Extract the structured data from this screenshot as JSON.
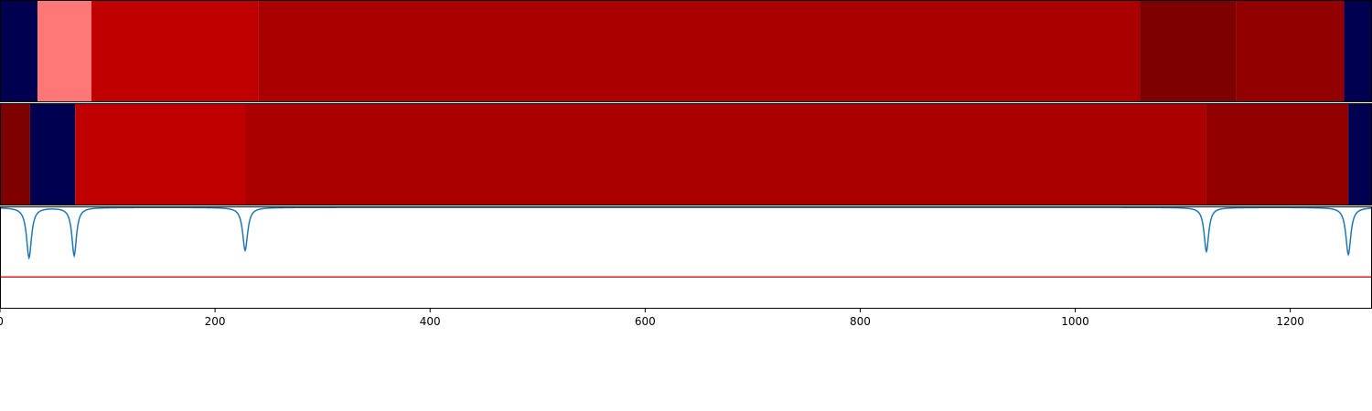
{
  "chart_data": [
    {
      "type": "heatmap",
      "title": "",
      "xlabel": "",
      "ylabel": "",
      "xlim": [
        0,
        1276
      ],
      "segments": [
        {
          "start": 0,
          "end": 35,
          "color": "#000050"
        },
        {
          "start": 35,
          "end": 85,
          "color": "#ff7777"
        },
        {
          "start": 85,
          "end": 240,
          "color": "#c00000"
        },
        {
          "start": 240,
          "end": 1060,
          "color": "#aa0000"
        },
        {
          "start": 1060,
          "end": 1150,
          "color": "#7f0000"
        },
        {
          "start": 1150,
          "end": 1250,
          "color": "#930000"
        },
        {
          "start": 1250,
          "end": 1276,
          "color": "#000050"
        }
      ]
    },
    {
      "type": "heatmap",
      "title": "",
      "xlabel": "",
      "ylabel": "",
      "xlim": [
        0,
        1276
      ],
      "segments": [
        {
          "start": 0,
          "end": 28,
          "color": "#7f0000"
        },
        {
          "start": 28,
          "end": 70,
          "color": "#000050"
        },
        {
          "start": 70,
          "end": 228,
          "color": "#c00000"
        },
        {
          "start": 228,
          "end": 1122,
          "color": "#aa0000"
        },
        {
          "start": 1122,
          "end": 1254,
          "color": "#930000"
        },
        {
          "start": 1254,
          "end": 1276,
          "color": "#000050"
        }
      ]
    },
    {
      "type": "line",
      "title": "",
      "xlabel": "",
      "ylabel": "",
      "xlim": [
        0,
        1276
      ],
      "ylim": [
        0,
        1
      ],
      "xticks": [
        "0",
        "200",
        "400",
        "600",
        "800",
        "1000",
        "1200"
      ],
      "x_tick_values": [
        0,
        200,
        400,
        600,
        800,
        1000,
        1200
      ],
      "grid": false,
      "series": [
        {
          "color": "#1f77b4",
          "baseline": 0.99,
          "dips": [
            {
              "x": 27,
              "depth": 0.49,
              "width": 2.8
            },
            {
              "x": 69,
              "depth": 0.47,
              "width": 2.6
            },
            {
              "x": 228,
              "depth": 0.42,
              "width": 2.8
            },
            {
              "x": 1122,
              "depth": 0.43,
              "width": 2.6
            },
            {
              "x": 1254,
              "depth": 0.46,
              "width": 2.8
            }
          ]
        }
      ],
      "threshold": {
        "y": 0.31,
        "color": "#e41a1c"
      }
    }
  ]
}
